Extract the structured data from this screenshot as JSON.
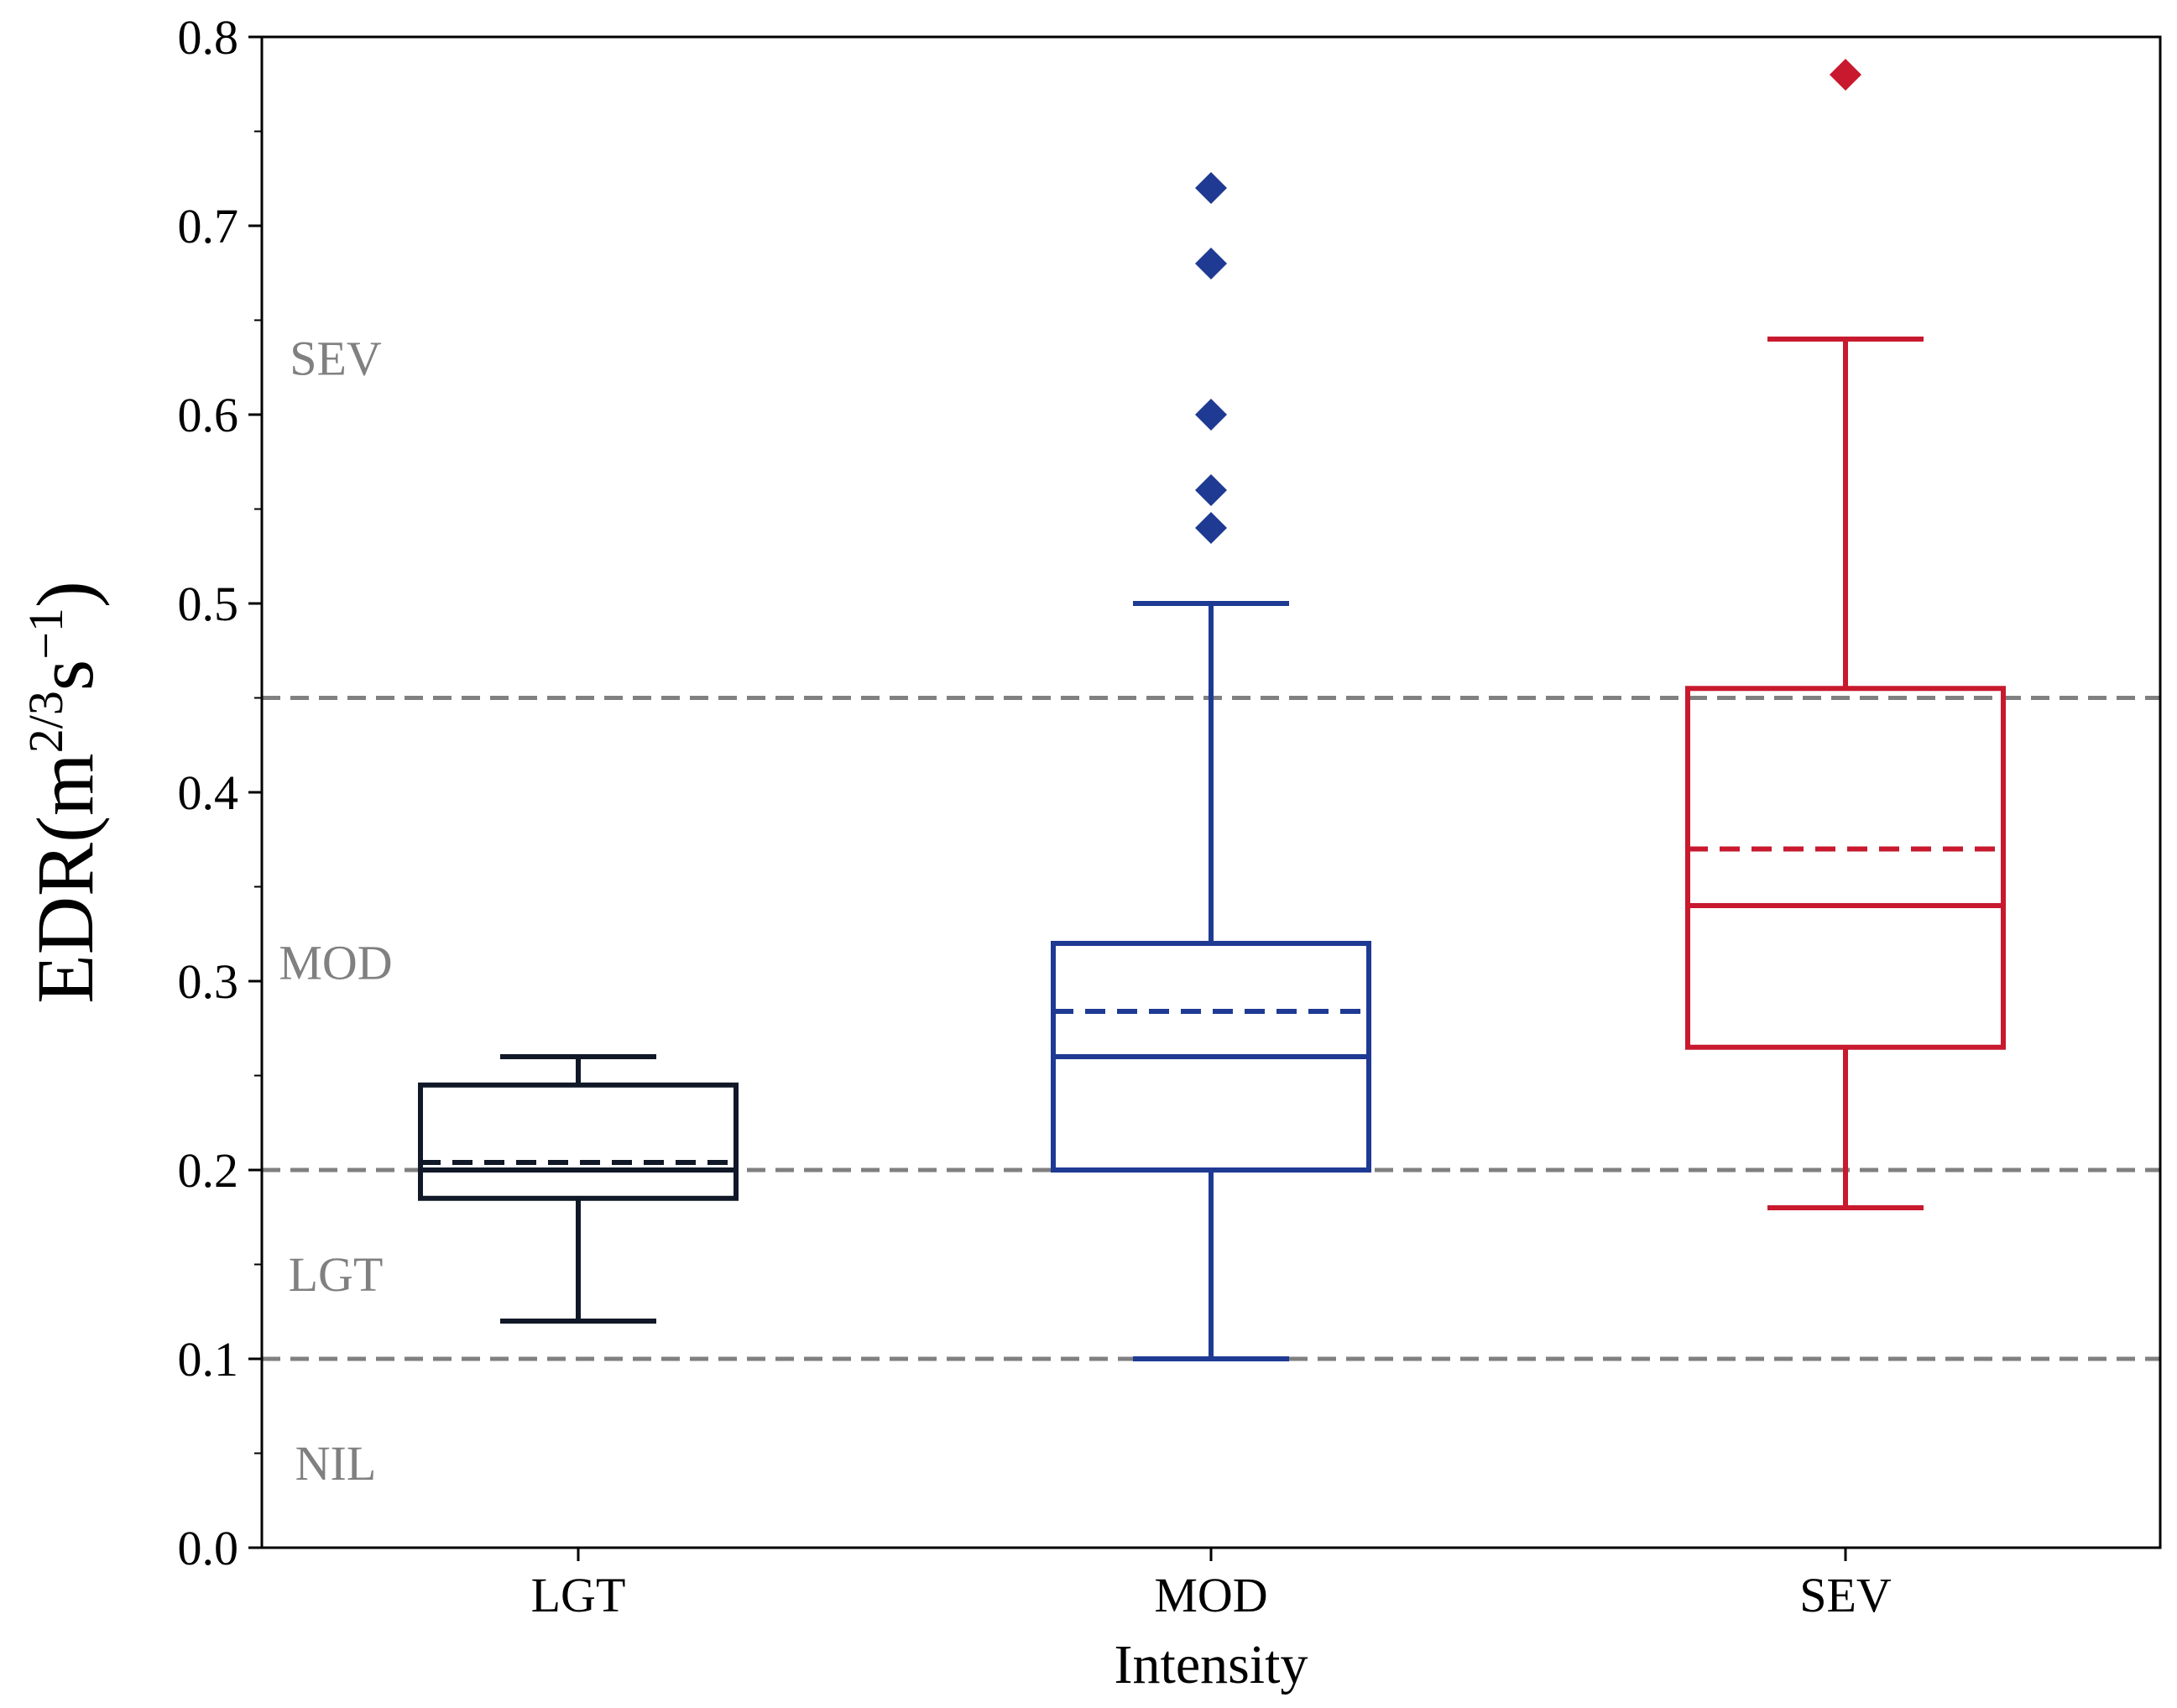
{
  "chart_data": {
    "type": "box",
    "xlabel": "Intensity",
    "ylabel": {
      "base": "EDR(m",
      "sup1": "2/3",
      "mid": "s",
      "sup2": "−1",
      "end": ")"
    },
    "ylim": [
      0.0,
      0.8
    ],
    "yticks": [
      "0.0",
      "0.1",
      "0.2",
      "0.3",
      "0.4",
      "0.5",
      "0.6",
      "0.7",
      "0.8"
    ],
    "ytick_values": [
      0.0,
      0.1,
      0.2,
      0.3,
      0.4,
      0.5,
      0.6,
      0.7,
      0.8
    ],
    "yminor_step": 0.05,
    "categories": [
      "LGT",
      "MOD",
      "SEV"
    ],
    "boxes": [
      {
        "name": "LGT",
        "color": "#111827",
        "whisker_low": 0.12,
        "q1": 0.185,
        "median": 0.2,
        "mean": 0.204,
        "q3": 0.245,
        "whisker_high": 0.26,
        "outliers": []
      },
      {
        "name": "MOD",
        "color": "#1f3a93",
        "whisker_low": 0.1,
        "q1": 0.2,
        "median": 0.26,
        "mean": 0.284,
        "q3": 0.32,
        "whisker_high": 0.5,
        "outliers": [
          0.54,
          0.56,
          0.6,
          0.68,
          0.72
        ]
      },
      {
        "name": "SEV",
        "color": "#c8192e",
        "whisker_low": 0.18,
        "q1": 0.265,
        "median": 0.34,
        "mean": 0.37,
        "q3": 0.455,
        "whisker_high": 0.64,
        "outliers": [
          0.78
        ]
      }
    ],
    "thresholds": [
      {
        "value": 0.1,
        "color": "#808080"
      },
      {
        "value": 0.2,
        "color": "#808080"
      },
      {
        "value": 0.45,
        "color": "#808080"
      }
    ],
    "region_labels": [
      {
        "text": "SEV",
        "y": 0.63
      },
      {
        "text": "MOD",
        "y": 0.31
      },
      {
        "text": "LGT",
        "y": 0.145
      },
      {
        "text": "NIL",
        "y": 0.045
      }
    ]
  }
}
